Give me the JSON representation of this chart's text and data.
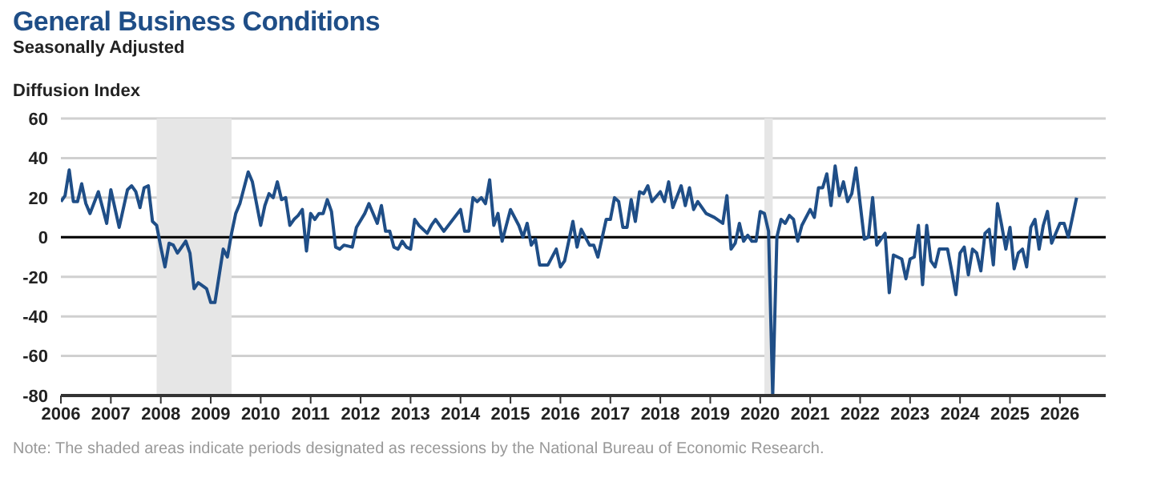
{
  "chart_data": {
    "type": "line",
    "title": "General Business Conditions",
    "subtitle": "Seasonally Adjusted",
    "ylabel": "Diffusion Index",
    "annotations": [
      "Note: The shaded areas indicate periods designated as recessions by the National Bureau of Economic Research."
    ],
    "x": [
      "2006-01",
      "2006-02",
      "2006-03",
      "2006-04",
      "2006-05",
      "2006-06",
      "2006-07",
      "2006-08",
      "2006-10",
      "2006-12",
      "2007-01",
      "2007-03",
      "2007-05",
      "2007-06",
      "2007-07",
      "2007-08",
      "2007-09",
      "2007-10",
      "2007-11",
      "2007-12",
      "2008-01",
      "2008-02",
      "2008-03",
      "2008-04",
      "2008-05",
      "2008-07",
      "2008-08",
      "2008-09",
      "2008-10",
      "2008-12",
      "2009-01",
      "2009-02",
      "2009-04",
      "2009-05",
      "2009-06",
      "2009-07",
      "2009-08",
      "2009-10",
      "2009-11",
      "2010-01",
      "2010-02",
      "2010-03",
      "2010-04",
      "2010-05",
      "2010-06",
      "2010-07",
      "2010-08",
      "2010-09",
      "2010-10",
      "2010-11",
      "2010-12",
      "2011-01",
      "2011-02",
      "2011-03",
      "2011-04",
      "2011-05",
      "2011-06",
      "2011-07",
      "2011-08",
      "2011-09",
      "2011-11",
      "2011-12",
      "2012-02",
      "2012-03",
      "2012-05",
      "2012-06",
      "2012-07",
      "2012-08",
      "2012-09",
      "2012-10",
      "2012-11",
      "2012-12",
      "2013-01",
      "2013-02",
      "2013-03",
      "2013-05",
      "2013-06",
      "2013-07",
      "2013-09",
      "2014-01",
      "2014-02",
      "2014-03",
      "2014-04",
      "2014-05",
      "2014-06",
      "2014-07",
      "2014-08",
      "2014-09",
      "2014-10",
      "2014-11",
      "2015-01",
      "2015-03",
      "2015-04",
      "2015-05",
      "2015-06",
      "2015-07",
      "2015-08",
      "2015-10",
      "2015-12",
      "2016-01",
      "2016-02",
      "2016-04",
      "2016-05",
      "2016-06",
      "2016-08",
      "2016-09",
      "2016-10",
      "2016-12",
      "2017-01",
      "2017-02",
      "2017-03",
      "2017-04",
      "2017-05",
      "2017-06",
      "2017-07",
      "2017-08",
      "2017-09",
      "2017-10",
      "2017-11",
      "2018-01",
      "2018-02",
      "2018-03",
      "2018-04",
      "2018-06",
      "2018-07",
      "2018-08",
      "2018-09",
      "2018-10",
      "2018-12",
      "2019-02",
      "2019-04",
      "2019-05",
      "2019-06",
      "2019-07",
      "2019-08",
      "2019-09",
      "2019-10",
      "2019-11",
      "2019-12",
      "2020-01",
      "2020-02",
      "2020-03",
      "2020-04",
      "2020-05",
      "2020-06",
      "2020-07",
      "2020-08",
      "2020-09",
      "2020-10",
      "2020-11",
      "2021-01",
      "2021-02",
      "2021-03",
      "2021-04",
      "2021-05",
      "2021-06",
      "2021-07",
      "2021-08",
      "2021-09",
      "2021-10",
      "2021-11",
      "2021-12",
      "2022-02",
      "2022-03",
      "2022-04",
      "2022-05",
      "2022-07",
      "2022-08",
      "2022-09",
      "2022-10",
      "2022-11",
      "2022-12",
      "2023-01",
      "2023-02",
      "2023-03",
      "2023-04",
      "2023-05",
      "2023-06",
      "2023-07",
      "2023-08",
      "2023-10",
      "2023-11",
      "2023-12",
      "2024-01",
      "2024-02",
      "2024-03",
      "2024-04",
      "2024-05",
      "2024-06",
      "2024-07",
      "2024-08",
      "2024-09",
      "2024-10",
      "2024-11",
      "2024-12",
      "2025-01",
      "2025-02",
      "2025-03",
      "2025-04",
      "2025-05",
      "2025-06",
      "2025-07",
      "2025-08",
      "2025-09",
      "2025-10",
      "2025-11",
      "2026-01",
      "2026-02",
      "2026-03",
      "2026-05"
    ],
    "series": [
      {
        "color": "#1f4e87",
        "values": [
          18,
          21,
          34,
          18,
          18,
          27,
          17,
          12,
          23,
          7,
          24,
          5,
          24,
          26,
          23,
          15,
          25,
          26,
          8,
          6,
          -5,
          -15,
          -3,
          -4,
          -8,
          -2,
          -8,
          -26,
          -23,
          -26,
          -33,
          -33,
          -6,
          -10,
          2,
          12,
          17,
          33,
          28,
          6,
          16,
          22,
          20,
          28,
          19,
          20,
          6,
          9,
          11,
          14,
          -7,
          12,
          9,
          12,
          12,
          19,
          13,
          -5,
          -6,
          -4,
          -5,
          5,
          12,
          17,
          7,
          16,
          3,
          3,
          -5,
          -6,
          -2,
          -5,
          -6,
          9,
          6,
          2,
          6,
          9,
          3,
          14,
          3,
          3,
          20,
          18,
          20,
          17,
          29,
          6,
          12,
          -2,
          14,
          6,
          0,
          7,
          -4,
          -1,
          -14,
          -14,
          -6,
          -15,
          -12,
          8,
          -5,
          4,
          -4,
          -4,
          -10,
          9,
          9,
          20,
          18,
          5,
          5,
          19,
          8,
          23,
          22,
          26,
          18,
          23,
          18,
          28,
          15,
          26,
          16,
          25,
          14,
          18,
          12,
          10,
          7,
          21,
          -6,
          -3,
          7,
          -2,
          1,
          -2,
          -2,
          13,
          12,
          3,
          -80,
          0,
          9,
          7,
          11,
          9,
          -2,
          6,
          14,
          10,
          25,
          25,
          32,
          16,
          36,
          21,
          28,
          18,
          22,
          35,
          -1,
          0,
          20,
          -4,
          2,
          -28,
          -9,
          -10,
          -11,
          -21,
          -11,
          -10,
          6,
          -24,
          6,
          -12,
          -15,
          -6,
          -6,
          -17,
          -29,
          -8,
          -5,
          -19,
          -6,
          -8,
          -17,
          2,
          4,
          -14,
          17,
          6,
          -6,
          5,
          -16,
          -8,
          -6,
          -15,
          5,
          9,
          -6,
          6,
          13,
          -3,
          7,
          7,
          0,
          20
        ]
      }
    ],
    "xlim": [
      "2006-01",
      "2026-12"
    ],
    "xticks": [
      "2006",
      "2007",
      "2008",
      "2009",
      "2010",
      "2011",
      "2012",
      "2013",
      "2014",
      "2015",
      "2016",
      "2017",
      "2018",
      "2019",
      "2020",
      "2021",
      "2022",
      "2023",
      "2024",
      "2025",
      "2026"
    ],
    "ylim": [
      -80,
      60
    ],
    "yticks": [
      -80,
      -60,
      -40,
      -20,
      0,
      20,
      40,
      60
    ],
    "grid": "y",
    "marker": "none",
    "line_style": "solid",
    "ref_lines": [
      {
        "axis": "y",
        "value": 0,
        "color": "#000000"
      }
    ],
    "bands": [
      {
        "axis": "x",
        "from": "2007-12",
        "to": "2009-06",
        "color": "#e6e6e6"
      },
      {
        "axis": "x",
        "from": "2020-02",
        "to": "2020-04",
        "color": "#e6e6e6"
      }
    ]
  }
}
